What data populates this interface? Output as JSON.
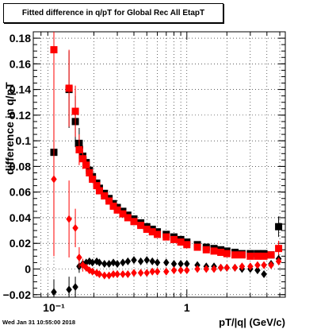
{
  "chart_data": {
    "type": "scatter",
    "title": "Fitted difference in q/pT for Global Rec All EtapT",
    "xlabel": "pT/|q| (GeV/c)",
    "ylabel": "difference in q/pT",
    "xscale": "log",
    "xlim": [
      0.07,
      5.5
    ],
    "ylim": [
      -0.022,
      0.185
    ],
    "grid": true,
    "x_tick_labels": [
      "10⁻¹",
      "1"
    ],
    "y_ticks": [
      -0.02,
      0,
      0.02,
      0.04,
      0.06,
      0.08,
      0.1,
      0.12,
      0.14,
      0.16,
      0.18
    ],
    "y_tick_labels": [
      "−0.02",
      "0",
      "0.02",
      "0.04",
      "0.06",
      "0.08",
      "0.1",
      "0.12",
      "0.14",
      "0.16",
      "0.18"
    ],
    "series": [
      {
        "color": "#000000",
        "marker": "square",
        "points": [
          [
            0.1,
            0.091,
            0.06
          ],
          [
            0.13,
            0.14,
            0.03
          ],
          [
            0.145,
            0.115,
            0.02
          ],
          [
            0.155,
            0.098,
            0.012
          ],
          [
            0.165,
            0.088,
            0.008
          ],
          [
            0.175,
            0.083,
            0.005
          ],
          [
            0.185,
            0.077,
            0.004
          ],
          [
            0.195,
            0.072,
            0.003
          ],
          [
            0.21,
            0.067,
            0.002
          ],
          [
            0.22,
            0.063,
            0.002
          ],
          [
            0.24,
            0.059,
            0.002
          ],
          [
            0.26,
            0.055,
            0.001
          ],
          [
            0.28,
            0.051,
            0.001
          ],
          [
            0.3,
            0.048,
            0.001
          ],
          [
            0.33,
            0.045,
            0.001
          ],
          [
            0.36,
            0.042,
            0.001
          ],
          [
            0.4,
            0.039,
            0.001
          ],
          [
            0.45,
            0.036,
            0.001
          ],
          [
            0.5,
            0.033,
            0.001
          ],
          [
            0.55,
            0.031,
            0.001
          ],
          [
            0.6,
            0.029,
            0.001
          ],
          [
            0.7,
            0.027,
            0.001
          ],
          [
            0.8,
            0.025,
            0.001
          ],
          [
            0.9,
            0.023,
            0.001
          ],
          [
            1.0,
            0.021,
            0.001
          ],
          [
            1.2,
            0.019,
            0.001
          ],
          [
            1.4,
            0.017,
            0.001
          ],
          [
            1.6,
            0.016,
            0.001
          ],
          [
            1.8,
            0.015,
            0.001
          ],
          [
            2.0,
            0.014,
            0.001
          ],
          [
            2.3,
            0.013,
            0.001
          ],
          [
            2.6,
            0.012,
            0.001
          ],
          [
            3.0,
            0.012,
            0.001
          ],
          [
            3.4,
            0.012,
            0.001
          ],
          [
            3.8,
            0.012,
            0.001
          ],
          [
            4.3,
            0.011,
            0.001
          ],
          [
            4.9,
            0.033,
            0.008
          ]
        ]
      },
      {
        "color": "#ff0000",
        "marker": "square",
        "points": [
          [
            0.1,
            0.171,
            0.06
          ],
          [
            0.13,
            0.141,
            0.03
          ],
          [
            0.145,
            0.123,
            0.02
          ],
          [
            0.155,
            0.093,
            0.012
          ],
          [
            0.165,
            0.086,
            0.008
          ],
          [
            0.175,
            0.081,
            0.005
          ],
          [
            0.185,
            0.075,
            0.004
          ],
          [
            0.195,
            0.07,
            0.003
          ],
          [
            0.21,
            0.065,
            0.002
          ],
          [
            0.22,
            0.061,
            0.002
          ],
          [
            0.24,
            0.057,
            0.002
          ],
          [
            0.26,
            0.053,
            0.001
          ],
          [
            0.28,
            0.049,
            0.001
          ],
          [
            0.3,
            0.046,
            0.001
          ],
          [
            0.33,
            0.043,
            0.001
          ],
          [
            0.36,
            0.04,
            0.001
          ],
          [
            0.4,
            0.037,
            0.001
          ],
          [
            0.45,
            0.034,
            0.001
          ],
          [
            0.5,
            0.031,
            0.001
          ],
          [
            0.55,
            0.029,
            0.001
          ],
          [
            0.6,
            0.027,
            0.001
          ],
          [
            0.7,
            0.025,
            0.001
          ],
          [
            0.8,
            0.023,
            0.001
          ],
          [
            0.9,
            0.021,
            0.001
          ],
          [
            1.0,
            0.019,
            0.001
          ],
          [
            1.2,
            0.017,
            0.001
          ],
          [
            1.4,
            0.015,
            0.001
          ],
          [
            1.6,
            0.014,
            0.001
          ],
          [
            1.8,
            0.013,
            0.001
          ],
          [
            2.0,
            0.012,
            0.001
          ],
          [
            2.3,
            0.011,
            0.001
          ],
          [
            2.6,
            0.011,
            0.001
          ],
          [
            3.0,
            0.01,
            0.001
          ],
          [
            3.4,
            0.01,
            0.001
          ],
          [
            3.8,
            0.01,
            0.001
          ],
          [
            4.3,
            0.011,
            0.001
          ],
          [
            4.9,
            0.016,
            0.006
          ]
        ]
      },
      {
        "color": "#000000",
        "marker": "diamond",
        "points": [
          [
            0.1,
            -0.018,
            0.01
          ],
          [
            0.13,
            -0.016,
            0.01
          ],
          [
            0.145,
            -0.014,
            0.008
          ],
          [
            0.155,
            0.002,
            0.005
          ],
          [
            0.165,
            0.004,
            0.003
          ],
          [
            0.175,
            0.005,
            0.002
          ],
          [
            0.185,
            0.006,
            0.002
          ],
          [
            0.195,
            0.005,
            0.001
          ],
          [
            0.21,
            0.006,
            0.001
          ],
          [
            0.22,
            0.005,
            0.001
          ],
          [
            0.24,
            0.004,
            0.001
          ],
          [
            0.26,
            0.004,
            0.001
          ],
          [
            0.28,
            0.005,
            0.001
          ],
          [
            0.3,
            0.004,
            0.001
          ],
          [
            0.33,
            0.005,
            0.001
          ],
          [
            0.36,
            0.006,
            0.001
          ],
          [
            0.4,
            0.007,
            0.001
          ],
          [
            0.45,
            0.006,
            0.001
          ],
          [
            0.5,
            0.007,
            0.001
          ],
          [
            0.55,
            0.006,
            0.001
          ],
          [
            0.6,
            0.005,
            0.001
          ],
          [
            0.7,
            0.005,
            0.001
          ],
          [
            0.8,
            0.004,
            0.001
          ],
          [
            0.9,
            0.004,
            0.001
          ],
          [
            1.0,
            0.004,
            0.001
          ],
          [
            1.2,
            0.003,
            0.001
          ],
          [
            1.4,
            0.002,
            0.001
          ],
          [
            1.6,
            0.002,
            0.001
          ],
          [
            1.8,
            0.001,
            0.001
          ],
          [
            2.0,
            0.001,
            0.001
          ],
          [
            2.3,
            0.001,
            0.001
          ],
          [
            2.6,
            0.0,
            0.001
          ],
          [
            3.0,
            0.0,
            0.001
          ],
          [
            3.4,
            -0.001,
            0.001
          ],
          [
            3.8,
            -0.004,
            0.001
          ],
          [
            4.3,
            0.004,
            0.001
          ],
          [
            4.9,
            0.008,
            0.003
          ]
        ]
      },
      {
        "color": "#ff0000",
        "marker": "diamond",
        "points": [
          [
            0.1,
            0.07,
            0.06
          ],
          [
            0.13,
            0.039,
            0.03
          ],
          [
            0.145,
            0.032,
            0.015
          ],
          [
            0.155,
            0.009,
            0.008
          ],
          [
            0.165,
            0.003,
            0.005
          ],
          [
            0.175,
            0.001,
            0.003
          ],
          [
            0.185,
            -0.001,
            0.002
          ],
          [
            0.195,
            -0.002,
            0.002
          ],
          [
            0.21,
            -0.003,
            0.001
          ],
          [
            0.22,
            -0.004,
            0.001
          ],
          [
            0.24,
            -0.005,
            0.001
          ],
          [
            0.26,
            -0.005,
            0.001
          ],
          [
            0.28,
            -0.004,
            0.001
          ],
          [
            0.3,
            -0.004,
            0.001
          ],
          [
            0.33,
            -0.004,
            0.001
          ],
          [
            0.36,
            -0.004,
            0.001
          ],
          [
            0.4,
            -0.003,
            0.001
          ],
          [
            0.45,
            -0.003,
            0.001
          ],
          [
            0.5,
            -0.003,
            0.001
          ],
          [
            0.55,
            -0.002,
            0.001
          ],
          [
            0.6,
            -0.002,
            0.001
          ],
          [
            0.7,
            -0.002,
            0.001
          ],
          [
            0.8,
            -0.001,
            0.001
          ],
          [
            0.9,
            -0.001,
            0.001
          ],
          [
            1.0,
            -0.001,
            0.001
          ],
          [
            1.2,
            0.0,
            0.001
          ],
          [
            1.4,
            0.0,
            0.001
          ],
          [
            1.6,
            0.0,
            0.001
          ],
          [
            1.8,
            0.001,
            0.001
          ],
          [
            2.0,
            0.001,
            0.001
          ],
          [
            2.3,
            0.001,
            0.001
          ],
          [
            2.6,
            0.002,
            0.001
          ],
          [
            3.0,
            0.002,
            0.001
          ],
          [
            3.4,
            0.003,
            0.001
          ],
          [
            3.8,
            0.003,
            0.001
          ],
          [
            4.3,
            0.003,
            0.001
          ],
          [
            4.9,
            0.006,
            0.003
          ]
        ]
      }
    ]
  },
  "footer_timestamp": "Wed Jan 31 10:55:00 2018"
}
